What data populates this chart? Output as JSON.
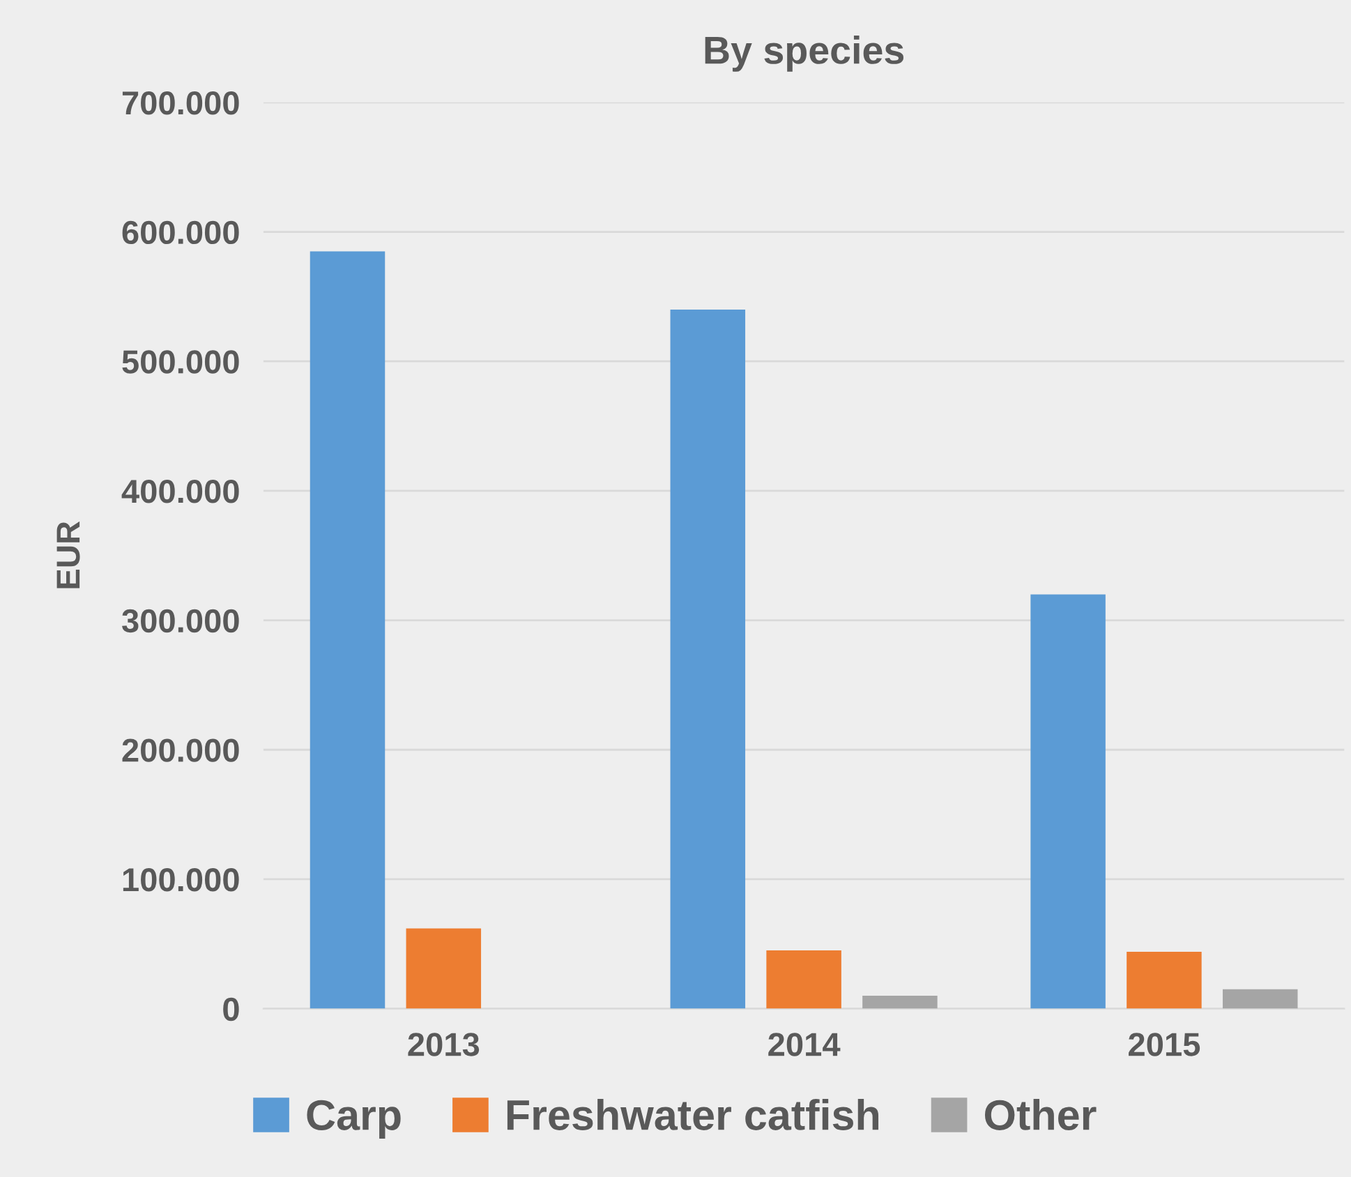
{
  "chart_data": {
    "type": "bar",
    "title": "By species",
    "ylabel": "EUR",
    "categories": [
      "2013",
      "2014",
      "2015"
    ],
    "series": [
      {
        "name": "Carp",
        "color": "#5b9bd5",
        "values": [
          585000,
          540000,
          320000
        ]
      },
      {
        "name": "Freshwater catfish",
        "color": "#ed7d31",
        "values": [
          62000,
          45000,
          44000
        ]
      },
      {
        "name": "Other",
        "color": "#a5a5a5",
        "values": [
          null,
          10000,
          15000
        ]
      }
    ],
    "ylim": [
      0,
      700000
    ],
    "yticks": [
      0,
      {
        "value": 100000,
        "label": "100.000"
      },
      {
        "value": 200000,
        "label": "200.000"
      },
      {
        "value": 300000,
        "label": "300.000"
      },
      {
        "value": 400000,
        "label": "400.000"
      },
      {
        "value": 500000,
        "label": "500.000"
      },
      {
        "value": 600000,
        "label": "600.000"
      },
      {
        "value": 700000,
        "label": "700.000"
      }
    ],
    "grid": "y",
    "legend": "bottom"
  }
}
